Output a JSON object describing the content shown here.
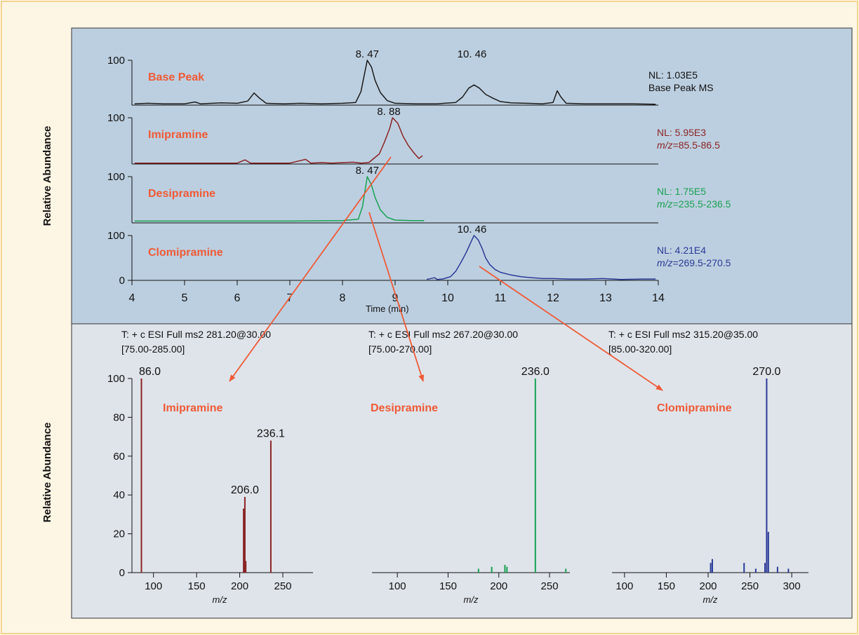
{
  "colors": {
    "background": "#fef6e4",
    "top_panel": "#bccfe0",
    "bottom_panel": "#dfe4ea",
    "compound_label": "#ef5a36",
    "arrow": "#ef5a36",
    "base_peak": "#1a1a1a",
    "imipramine": "#8b2424",
    "desipramine": "#19a152",
    "clomipramine": "#2b3a98"
  },
  "chart_data": [
    {
      "type": "line",
      "title": "",
      "xlabel": "Time (min)",
      "ylabel": "Relative Abundance",
      "xlim": [
        4,
        14
      ],
      "ylim": [
        0,
        100
      ],
      "x_ticks": [
        "4",
        "5",
        "6",
        "7",
        "8",
        "9",
        "10",
        "11",
        "12",
        "13",
        "14"
      ],
      "grid": false,
      "series": [
        {
          "name": "Base Peak",
          "color": "#1a1a1a",
          "y_tick": "100",
          "info": [
            "NL: 1.03E5",
            "Base Peak MS"
          ],
          "peak_labels": [
            {
              "x": 8.47,
              "text": "8. 47"
            },
            {
              "x": 10.46,
              "text": "10. 46"
            }
          ],
          "points": [
            [
              4.05,
              3
            ],
            [
              4.3,
              4
            ],
            [
              4.6,
              3
            ],
            [
              5.0,
              3
            ],
            [
              5.2,
              7
            ],
            [
              5.3,
              3
            ],
            [
              5.7,
              5
            ],
            [
              6.0,
              4
            ],
            [
              6.2,
              9
            ],
            [
              6.32,
              27
            ],
            [
              6.42,
              16
            ],
            [
              6.55,
              4
            ],
            [
              6.9,
              3
            ],
            [
              7.2,
              4
            ],
            [
              7.6,
              3
            ],
            [
              8.0,
              4
            ],
            [
              8.25,
              6
            ],
            [
              8.35,
              30
            ],
            [
              8.47,
              100
            ],
            [
              8.55,
              85
            ],
            [
              8.62,
              55
            ],
            [
              8.72,
              28
            ],
            [
              8.85,
              10
            ],
            [
              9.0,
              4
            ],
            [
              9.4,
              3
            ],
            [
              9.8,
              3
            ],
            [
              10.15,
              6
            ],
            [
              10.28,
              18
            ],
            [
              10.4,
              38
            ],
            [
              10.5,
              45
            ],
            [
              10.6,
              38
            ],
            [
              10.72,
              24
            ],
            [
              10.85,
              16
            ],
            [
              11.0,
              8
            ],
            [
              11.2,
              5
            ],
            [
              11.5,
              4
            ],
            [
              11.8,
              3
            ],
            [
              12.0,
              6
            ],
            [
              12.08,
              32
            ],
            [
              12.15,
              18
            ],
            [
              12.25,
              4
            ],
            [
              12.6,
              3
            ],
            [
              13.0,
              3
            ],
            [
              13.5,
              3
            ],
            [
              13.95,
              2
            ]
          ]
        },
        {
          "name": "Imipramine",
          "color": "#8b2424",
          "y_tick": "100",
          "info": [
            "NL: 5.95E3",
            "m/z=85.5-86.5"
          ],
          "peak_labels": [
            {
              "x": 8.88,
              "text": "8. 88"
            }
          ],
          "points": [
            [
              4.05,
              2
            ],
            [
              5.0,
              2
            ],
            [
              6.0,
              2
            ],
            [
              6.15,
              9
            ],
            [
              6.25,
              2
            ],
            [
              7.0,
              2
            ],
            [
              7.3,
              10
            ],
            [
              7.4,
              2
            ],
            [
              7.6,
              3
            ],
            [
              7.8,
              2
            ],
            [
              8.2,
              4
            ],
            [
              8.35,
              2
            ],
            [
              8.5,
              3
            ],
            [
              8.7,
              22
            ],
            [
              8.8,
              48
            ],
            [
              8.9,
              78
            ],
            [
              8.95,
              100
            ],
            [
              9.05,
              88
            ],
            [
              9.15,
              60
            ],
            [
              9.25,
              40
            ],
            [
              9.35,
              25
            ],
            [
              9.45,
              12
            ],
            [
              9.52,
              18
            ]
          ]
        },
        {
          "name": "Desipramine",
          "color": "#19a152",
          "y_tick": "100",
          "info": [
            "NL: 1.75E5",
            "m/z=235.5-236.5"
          ],
          "peak_labels": [
            {
              "x": 8.47,
              "text": "8. 47"
            }
          ],
          "points": [
            [
              4.05,
              4
            ],
            [
              5.0,
              4
            ],
            [
              6.0,
              4
            ],
            [
              7.0,
              4
            ],
            [
              8.0,
              5
            ],
            [
              8.3,
              8
            ],
            [
              8.38,
              35
            ],
            [
              8.47,
              100
            ],
            [
              8.55,
              82
            ],
            [
              8.62,
              55
            ],
            [
              8.72,
              28
            ],
            [
              8.85,
              12
            ],
            [
              9.0,
              6
            ],
            [
              9.3,
              5
            ],
            [
              9.55,
              5
            ]
          ]
        },
        {
          "name": "Clomipramine",
          "color": "#2b3a98",
          "y_tick": "100",
          "info": [
            "NL: 4.21E4",
            "m/z=269.5-270.5"
          ],
          "peak_labels": [
            {
              "x": 10.46,
              "text": "10. 46"
            }
          ],
          "points": [
            [
              9.6,
              2
            ],
            [
              9.75,
              6
            ],
            [
              9.8,
              2
            ],
            [
              9.9,
              3
            ],
            [
              10.05,
              8
            ],
            [
              10.15,
              20
            ],
            [
              10.25,
              40
            ],
            [
              10.35,
              62
            ],
            [
              10.45,
              88
            ],
            [
              10.5,
              100
            ],
            [
              10.58,
              90
            ],
            [
              10.65,
              72
            ],
            [
              10.72,
              50
            ],
            [
              10.8,
              35
            ],
            [
              10.9,
              24
            ],
            [
              11.0,
              18
            ],
            [
              11.2,
              12
            ],
            [
              11.4,
              8
            ],
            [
              11.6,
              6
            ],
            [
              11.8,
              4
            ],
            [
              12.0,
              4
            ],
            [
              12.3,
              3
            ],
            [
              12.6,
              3
            ],
            [
              12.95,
              4
            ],
            [
              13.3,
              2
            ],
            [
              13.7,
              3
            ],
            [
              13.95,
              3
            ]
          ]
        }
      ]
    },
    {
      "type": "bar",
      "name": "Imipramine",
      "title": "T: + c ESI Full ms2 281.20@30.00 [75.00-285.00]",
      "title_lines": [
        "T: + c ESI Full ms2 281.20@30.00",
        "[75.00-285.00]"
      ],
      "xlabel": "m/z",
      "ylabel": "Relative Abundance",
      "xlim": [
        75,
        285
      ],
      "ylim": [
        0,
        100
      ],
      "x_ticks": [
        "100",
        "150",
        "200",
        "250"
      ],
      "y_ticks": [
        "0",
        "20",
        "40",
        "60",
        "80",
        "100"
      ],
      "color": "#8b2424",
      "peaks": [
        {
          "x": 86.0,
          "y": 100
        },
        {
          "x": 204.5,
          "y": 33
        },
        {
          "x": 206.0,
          "y": 39
        },
        {
          "x": 207.0,
          "y": 6
        },
        {
          "x": 236.1,
          "y": 68
        }
      ],
      "peak_labels": [
        {
          "x": 86.0,
          "y": 100,
          "text": "86.0"
        },
        {
          "x": 206.0,
          "y": 39,
          "text": "206.0"
        },
        {
          "x": 236.1,
          "y": 68,
          "text": "236.1"
        }
      ]
    },
    {
      "type": "bar",
      "name": "Desipramine",
      "title": "T: + c ESI Full ms2 267.20@30.00 [75.00-270.00]",
      "title_lines": [
        "T: + c ESI Full ms2 267.20@30.00",
        "[75.00-270.00]"
      ],
      "xlabel": "m/z",
      "ylabel": "Relative Abundance",
      "xlim": [
        75,
        270
      ],
      "ylim": [
        0,
        100
      ],
      "x_ticks": [
        "100",
        "150",
        "200",
        "250"
      ],
      "y_ticks": [],
      "color": "#19a152",
      "peaks": [
        {
          "x": 180,
          "y": 2
        },
        {
          "x": 193,
          "y": 3
        },
        {
          "x": 206,
          "y": 4
        },
        {
          "x": 208,
          "y": 3
        },
        {
          "x": 236.0,
          "y": 100
        },
        {
          "x": 266,
          "y": 2
        }
      ],
      "peak_labels": [
        {
          "x": 236.0,
          "y": 100,
          "text": "236.0"
        }
      ]
    },
    {
      "type": "bar",
      "name": "Clomipramine",
      "title": "T: + c ESI Full ms2 315.20@35.00 [85.00-320.00]",
      "title_lines": [
        "T: + c ESI Full ms2 315.20@35.00",
        "[85.00-320.00]"
      ],
      "xlabel": "m/z",
      "ylabel": "Relative Abundance",
      "xlim": [
        85,
        320
      ],
      "ylim": [
        0,
        100
      ],
      "x_ticks": [
        "100",
        "150",
        "200",
        "250",
        "300"
      ],
      "y_ticks": [],
      "color": "#2b3a98",
      "peaks": [
        {
          "x": 203,
          "y": 5
        },
        {
          "x": 205,
          "y": 7
        },
        {
          "x": 243,
          "y": 5
        },
        {
          "x": 257,
          "y": 2
        },
        {
          "x": 268,
          "y": 5
        },
        {
          "x": 270.0,
          "y": 100
        },
        {
          "x": 272,
          "y": 21
        },
        {
          "x": 283,
          "y": 3
        },
        {
          "x": 296,
          "y": 2
        }
      ],
      "peak_labels": [
        {
          "x": 270.0,
          "y": 100,
          "text": "270.0"
        }
      ]
    }
  ]
}
